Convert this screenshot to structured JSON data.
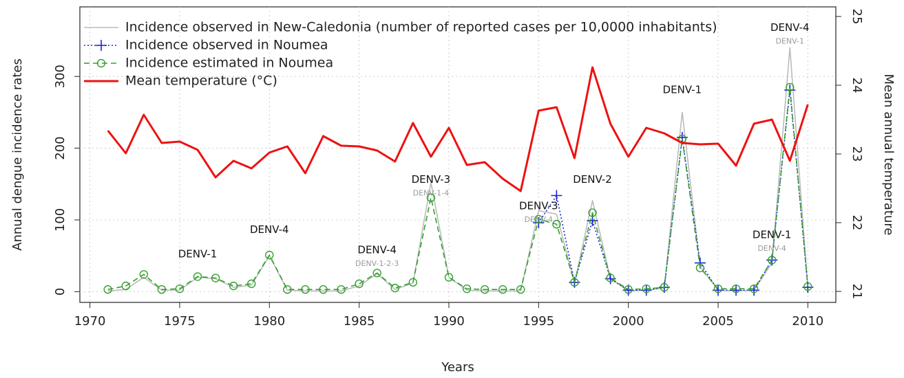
{
  "chart_data": {
    "type": "line",
    "x_label": "Years",
    "y_label": "Annual dengue incidence rates",
    "y2_label": "Mean annual temperature",
    "x": [
      1971,
      1972,
      1973,
      1974,
      1975,
      1976,
      1977,
      1978,
      1979,
      1980,
      1981,
      1982,
      1983,
      1984,
      1985,
      1986,
      1987,
      1988,
      1989,
      1990,
      1991,
      1992,
      1993,
      1994,
      1995,
      1996,
      1997,
      1998,
      1999,
      2000,
      2001,
      2002,
      2003,
      2004,
      2005,
      2006,
      2007,
      2008,
      2009,
      2010
    ],
    "xlim": [
      1969.44,
      2011.56
    ],
    "xticks": [
      1970,
      1975,
      1980,
      1985,
      1990,
      1995,
      2000,
      2005,
      2010
    ],
    "ylim": [
      -15,
      397
    ],
    "yticks": [
      0,
      100,
      200,
      300
    ],
    "y2lim": [
      20.84,
      25.14
    ],
    "y2ticks": [
      21,
      22,
      23,
      24,
      25
    ],
    "grid": true,
    "legend": "top-left",
    "series": [
      {
        "name": "Incidence observed in New-Caledonia (number of reported cases per 10,0000 inhabitants)",
        "color": "#bbbbbb",
        "line_style": "solid",
        "marker": "none",
        "values": [
          1,
          3,
          20,
          2,
          2,
          20,
          18,
          6,
          9,
          50,
          2,
          1,
          1,
          1,
          8,
          25,
          3,
          12,
          152,
          20,
          2,
          1,
          1,
          1,
          113,
          108,
          12,
          127,
          18,
          1,
          2,
          5,
          250,
          35,
          2,
          1,
          2,
          40,
          340,
          5
        ]
      },
      {
        "name": "Incidence observed in Noumea",
        "color": "#1f1fdd",
        "line_style": "dotted",
        "marker": "plus",
        "values": [
          null,
          null,
          null,
          null,
          null,
          null,
          null,
          null,
          null,
          null,
          null,
          null,
          null,
          null,
          null,
          null,
          null,
          null,
          null,
          null,
          null,
          null,
          null,
          null,
          96,
          134,
          13,
          99,
          18,
          2,
          2,
          6,
          215,
          40,
          2,
          2,
          2,
          44,
          281,
          6
        ]
      },
      {
        "name": "Incidence estimated in Noumea",
        "color": "#33a02c",
        "line_style": "dashed",
        "marker": "circle",
        "values": [
          3,
          8,
          24,
          3,
          4,
          21,
          19,
          8,
          11,
          51,
          3,
          3,
          3,
          3,
          11,
          26,
          5,
          13,
          131,
          20,
          4,
          3,
          3,
          3,
          101,
          94,
          13,
          110,
          19,
          3,
          4,
          6,
          213,
          33,
          4,
          4,
          4,
          44,
          285,
          7
        ]
      },
      {
        "name": "Mean temperature (°C)",
        "color": "#ee1111",
        "line_style": "solid",
        "marker": "none",
        "axis": "y2",
        "values": [
          23.34,
          23.01,
          23.57,
          23.16,
          23.18,
          23.06,
          22.66,
          22.9,
          22.79,
          23.02,
          23.11,
          22.72,
          23.26,
          23.12,
          23.11,
          23.05,
          22.89,
          23.45,
          22.96,
          23.38,
          22.84,
          22.88,
          22.64,
          22.46,
          23.63,
          23.68,
          22.94,
          24.26,
          23.44,
          22.96,
          23.38,
          23.3,
          23.16,
          23.14,
          23.15,
          22.83,
          23.44,
          23.5,
          22.9,
          23.72
        ]
      }
    ],
    "annotations": [
      {
        "label": "DENV-1",
        "x": 1976,
        "y": 52
      },
      {
        "label": "DENV-4",
        "x": 1980,
        "y": 86
      },
      {
        "label": "DENV-4",
        "sublabel": "DENV-1-2-3",
        "x": 1986,
        "y": 58
      },
      {
        "label": "DENV-3",
        "sublabel": "DENV-1-4",
        "x": 1989,
        "y": 156
      },
      {
        "label": "DENV-3",
        "sublabel": "DENV-4",
        "x": 1995,
        "y": 119
      },
      {
        "label": "DENV-2",
        "x": 1998,
        "y": 156
      },
      {
        "label": "DENV-1",
        "x": 2003,
        "y": 281
      },
      {
        "label": "DENV-1",
        "sublabel": "DENV-4",
        "x": 2008,
        "y": 79
      },
      {
        "label": "DENV-4",
        "sublabel": "DENV-1",
        "x": 2009,
        "y": 368
      }
    ]
  }
}
